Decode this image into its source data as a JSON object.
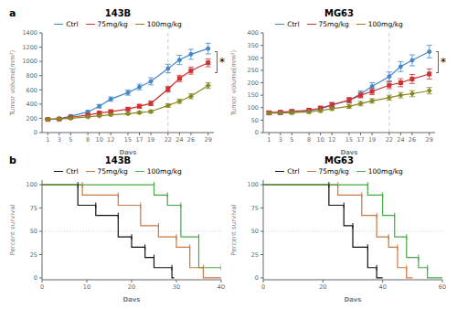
{
  "chart_data": [
    {
      "type": "line",
      "title": "143B",
      "subtitle": "a",
      "xlabel": "Days",
      "ylabel": "Tumor volume(mm²)",
      "x": [
        1,
        3,
        5,
        8,
        10,
        12,
        15,
        17,
        19,
        22,
        24,
        26,
        29
      ],
      "xlim": [
        0,
        30
      ],
      "xticks": [
        1,
        3,
        5,
        8,
        10,
        12,
        15,
        17,
        19,
        22,
        24,
        26,
        29
      ],
      "ylim": [
        0,
        1400
      ],
      "yticks": [
        0,
        200,
        400,
        600,
        800,
        1000,
        1200,
        1400
      ],
      "grid": false,
      "legend": "top",
      "vline": 22,
      "annotations": [
        "*"
      ],
      "series": [
        {
          "name": "Ctrl",
          "color": "#4488cc",
          "marker": "circle",
          "line_style": "solid",
          "values": [
            185,
            195,
            230,
            290,
            370,
            470,
            560,
            640,
            720,
            900,
            1020,
            1100,
            1180
          ],
          "errors": [
            10,
            10,
            15,
            20,
            25,
            30,
            35,
            40,
            50,
            60,
            65,
            70,
            75
          ]
        },
        {
          "name": "75mg/kg",
          "color": "#cc3333",
          "marker": "square",
          "line_style": "solid",
          "values": [
            185,
            190,
            215,
            245,
            275,
            295,
            330,
            370,
            410,
            610,
            760,
            870,
            980
          ],
          "errors": [
            10,
            10,
            12,
            15,
            18,
            20,
            22,
            25,
            30,
            40,
            45,
            50,
            55
          ]
        },
        {
          "name": "100mg/kg",
          "color": "#888822",
          "marker": "diamond",
          "line_style": "solid",
          "values": [
            185,
            190,
            200,
            220,
            235,
            250,
            265,
            280,
            295,
            380,
            440,
            510,
            660
          ],
          "errors": [
            10,
            10,
            12,
            12,
            12,
            15,
            15,
            18,
            20,
            25,
            30,
            35,
            40
          ]
        }
      ]
    },
    {
      "type": "line",
      "title": "MG63",
      "xlabel": "Days",
      "ylabel": "Tumor volume(mm²)",
      "x": [
        1,
        3,
        5,
        8,
        10,
        12,
        15,
        17,
        19,
        22,
        24,
        26,
        29
      ],
      "xlim": [
        0,
        30
      ],
      "xticks": [
        1,
        3,
        5,
        8,
        10,
        12,
        15,
        17,
        19,
        22,
        24,
        26,
        29
      ],
      "ylim": [
        0,
        400
      ],
      "yticks": [
        0,
        50,
        100,
        150,
        200,
        250,
        300,
        350,
        400
      ],
      "grid": false,
      "legend": "top",
      "vline": 22,
      "annotations": [
        "*"
      ],
      "series": [
        {
          "name": "Ctrl",
          "color": "#4488cc",
          "marker": "circle",
          "line_style": "solid",
          "values": [
            78,
            78,
            82,
            88,
            95,
            110,
            130,
            155,
            185,
            225,
            265,
            290,
            325
          ],
          "errors": [
            6,
            6,
            7,
            7,
            8,
            9,
            10,
            12,
            15,
            18,
            20,
            22,
            25
          ]
        },
        {
          "name": "75mg/kg",
          "color": "#cc3333",
          "marker": "square",
          "line_style": "solid",
          "values": [
            80,
            82,
            85,
            90,
            98,
            112,
            130,
            150,
            165,
            190,
            200,
            215,
            235
          ],
          "errors": [
            6,
            6,
            7,
            7,
            8,
            9,
            10,
            11,
            13,
            14,
            16,
            18,
            20
          ]
        },
        {
          "name": "100mg/kg",
          "color": "#888822",
          "marker": "diamond",
          "line_style": "solid",
          "values": [
            78,
            79,
            80,
            83,
            88,
            96,
            105,
            116,
            127,
            140,
            150,
            156,
            168
          ],
          "errors": [
            6,
            6,
            6,
            6,
            7,
            7,
            8,
            9,
            9,
            10,
            11,
            12,
            13
          ]
        }
      ]
    },
    {
      "type": "line",
      "title": "143B",
      "subtitle": "b",
      "xlabel": "Days",
      "ylabel": "Percent survival",
      "xlim": [
        0,
        40
      ],
      "xticks": [
        0,
        10,
        20,
        30,
        40
      ],
      "ylim": [
        -2,
        105
      ],
      "yticks": [
        0,
        25,
        50,
        75,
        100
      ],
      "grid": false,
      "legend": "top",
      "hline": 50,
      "series": [
        {
          "name": "Ctrl",
          "color": "#111111",
          "marker": "|",
          "line_style": "steps",
          "x": [
            0,
            8,
            8,
            12,
            12,
            17,
            17,
            20,
            20,
            23,
            23,
            25,
            25,
            29,
            29,
            29.5
          ],
          "values": [
            100,
            100,
            78,
            78,
            67,
            67,
            44,
            44,
            33,
            33,
            22,
            22,
            11,
            11,
            0,
            0
          ]
        },
        {
          "name": "75mg/kg",
          "color": "#cc7744",
          "marker": "|",
          "line_style": "steps",
          "x": [
            0,
            9,
            9,
            17,
            17,
            22,
            22,
            26,
            26,
            30,
            30,
            33,
            33,
            36,
            36,
            40
          ],
          "values": [
            100,
            100,
            89,
            89,
            78,
            78,
            56,
            56,
            44,
            44,
            33,
            33,
            11,
            11,
            0,
            0
          ]
        },
        {
          "name": "100mg/kg",
          "color": "#44aa44",
          "marker": "|",
          "line_style": "steps",
          "x": [
            0,
            25,
            25,
            28,
            28,
            31,
            31,
            35,
            35,
            40
          ],
          "values": [
            100,
            100,
            89,
            89,
            78,
            78,
            44,
            44,
            11,
            11
          ]
        }
      ]
    },
    {
      "type": "line",
      "title": "MG63",
      "xlabel": "Days",
      "ylabel": "Percent survival",
      "xlim": [
        0,
        60
      ],
      "xticks": [
        0,
        20,
        40,
        60
      ],
      "ylim": [
        -2,
        105
      ],
      "yticks": [
        0,
        25,
        50,
        75,
        100
      ],
      "grid": false,
      "legend": "top",
      "hline": 50,
      "series": [
        {
          "name": "Ctrl",
          "color": "#111111",
          "marker": "|",
          "line_style": "steps",
          "x": [
            0,
            22,
            22,
            27,
            27,
            30,
            30,
            35,
            35,
            38,
            38,
            40
          ],
          "values": [
            100,
            100,
            78,
            78,
            56,
            56,
            33,
            33,
            11,
            11,
            0,
            0
          ]
        },
        {
          "name": "75mg/kg",
          "color": "#cc7744",
          "marker": "|",
          "line_style": "steps",
          "x": [
            0,
            25,
            25,
            33,
            33,
            38,
            38,
            42,
            42,
            45,
            45,
            48,
            48,
            50
          ],
          "values": [
            100,
            100,
            89,
            89,
            67,
            67,
            44,
            44,
            33,
            33,
            11,
            11,
            0,
            0
          ]
        },
        {
          "name": "100mg/kg",
          "color": "#44aa44",
          "marker": "|",
          "line_style": "steps",
          "x": [
            0,
            35,
            35,
            40,
            40,
            44,
            44,
            48,
            48,
            52,
            52,
            55,
            55,
            60
          ],
          "values": [
            100,
            100,
            89,
            89,
            67,
            67,
            44,
            44,
            22,
            22,
            11,
            11,
            0,
            0
          ]
        }
      ]
    }
  ]
}
